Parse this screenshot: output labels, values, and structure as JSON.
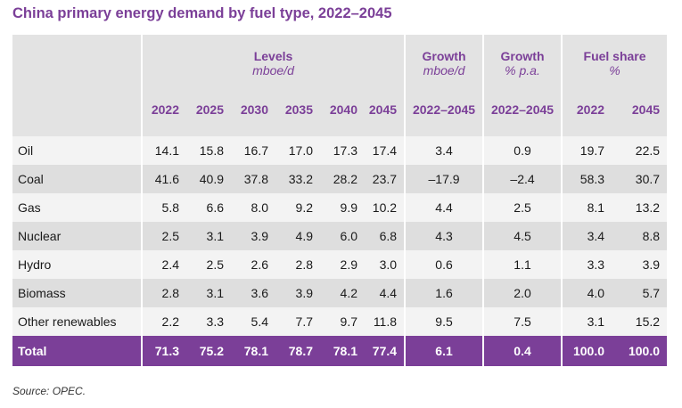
{
  "title": "China primary energy demand by fuel type, 2022–2045",
  "header": {
    "levels": "Levels",
    "levels_unit": "mboe/d",
    "growth_abs": "Growth",
    "growth_abs_unit": "mboe/d",
    "growth_pct": "Growth",
    "growth_pct_unit": "% p.a.",
    "share": "Fuel share",
    "share_unit": "%",
    "years": [
      "2022",
      "2025",
      "2030",
      "2035",
      "2040",
      "2045"
    ],
    "growth_abs_period": "2022–2045",
    "growth_pct_period": "2022–2045",
    "share_years": [
      "2022",
      "2045"
    ]
  },
  "rows": [
    {
      "label": "Oil",
      "levels": [
        "14.1",
        "15.8",
        "16.7",
        "17.0",
        "17.3",
        "17.4"
      ],
      "growth_abs": "3.4",
      "growth_pct": "0.9",
      "share": [
        "19.7",
        "22.5"
      ]
    },
    {
      "label": "Coal",
      "levels": [
        "41.6",
        "40.9",
        "37.8",
        "33.2",
        "28.2",
        "23.7"
      ],
      "growth_abs": "–17.9",
      "growth_pct": "–2.4",
      "share": [
        "58.3",
        "30.7"
      ]
    },
    {
      "label": "Gas",
      "levels": [
        "5.8",
        "6.6",
        "8.0",
        "9.2",
        "9.9",
        "10.2"
      ],
      "growth_abs": "4.4",
      "growth_pct": "2.5",
      "share": [
        "8.1",
        "13.2"
      ]
    },
    {
      "label": "Nuclear",
      "levels": [
        "2.5",
        "3.1",
        "3.9",
        "4.9",
        "6.0",
        "6.8"
      ],
      "growth_abs": "4.3",
      "growth_pct": "4.5",
      "share": [
        "3.4",
        "8.8"
      ]
    },
    {
      "label": "Hydro",
      "levels": [
        "2.4",
        "2.5",
        "2.6",
        "2.8",
        "2.9",
        "3.0"
      ],
      "growth_abs": "0.6",
      "growth_pct": "1.1",
      "share": [
        "3.3",
        "3.9"
      ]
    },
    {
      "label": "Biomass",
      "levels": [
        "2.8",
        "3.1",
        "3.6",
        "3.9",
        "4.2",
        "4.4"
      ],
      "growth_abs": "1.6",
      "growth_pct": "2.0",
      "share": [
        "4.0",
        "5.7"
      ]
    },
    {
      "label": "Other renewables",
      "levels": [
        "2.2",
        "3.3",
        "5.4",
        "7.7",
        "9.7",
        "11.8"
      ],
      "growth_abs": "9.5",
      "growth_pct": "7.5",
      "share": [
        "3.1",
        "15.2"
      ]
    }
  ],
  "total": {
    "label": "Total",
    "levels": [
      "71.3",
      "75.2",
      "78.1",
      "78.7",
      "78.1",
      "77.4"
    ],
    "growth_abs": "6.1",
    "growth_pct": "0.4",
    "share": [
      "100.0",
      "100.0"
    ]
  },
  "source": "Source: OPEC.",
  "colors": {
    "accent": "#7b3f98",
    "row_dark": "#dedede",
    "row_light": "#f3f3f3",
    "header_bg": "#e3e3e3"
  }
}
